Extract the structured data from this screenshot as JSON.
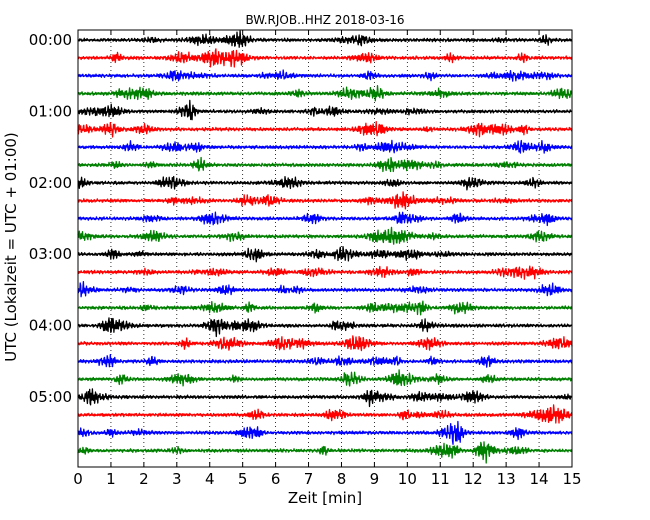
{
  "chart_data": {
    "type": "line",
    "title": "BW.RJOB..HHZ 2018-03-16",
    "xlabel": "Zeit  [min]",
    "ylabel": "UTC (Lokalzeit = UTC + 01:00)",
    "xlim": [
      0,
      15
    ],
    "x_ticks": [
      "0",
      "1",
      "2",
      "3",
      "4",
      "5",
      "6",
      "7",
      "8",
      "9",
      "10",
      "11",
      "12",
      "13",
      "14",
      "15"
    ],
    "y_ticks": [
      "00:00",
      "01:00",
      "02:00",
      "03:00",
      "04:00",
      "05:00"
    ],
    "grid": "vertical dotted",
    "trace_colors": [
      "#000000",
      "#ff0000",
      "#0000ff",
      "#008000"
    ],
    "series": [
      {
        "start": "00:00",
        "color": "#000000"
      },
      {
        "start": "00:15",
        "color": "#ff0000"
      },
      {
        "start": "00:30",
        "color": "#0000ff"
      },
      {
        "start": "00:45",
        "color": "#008000"
      },
      {
        "start": "01:00",
        "color": "#000000"
      },
      {
        "start": "01:15",
        "color": "#ff0000"
      },
      {
        "start": "01:30",
        "color": "#0000ff"
      },
      {
        "start": "01:45",
        "color": "#008000"
      },
      {
        "start": "02:00",
        "color": "#000000"
      },
      {
        "start": "02:15",
        "color": "#ff0000"
      },
      {
        "start": "02:30",
        "color": "#0000ff"
      },
      {
        "start": "02:45",
        "color": "#008000"
      },
      {
        "start": "03:00",
        "color": "#000000"
      },
      {
        "start": "03:15",
        "color": "#ff0000"
      },
      {
        "start": "03:30",
        "color": "#0000ff"
      },
      {
        "start": "03:45",
        "color": "#008000"
      },
      {
        "start": "04:00",
        "color": "#000000"
      },
      {
        "start": "04:15",
        "color": "#ff0000"
      },
      {
        "start": "04:30",
        "color": "#0000ff"
      },
      {
        "start": "04:45",
        "color": "#008000"
      },
      {
        "start": "05:00",
        "color": "#000000"
      },
      {
        "start": "05:15",
        "color": "#ff0000"
      },
      {
        "start": "05:30",
        "color": "#0000ff"
      },
      {
        "start": "05:45",
        "color": "#008000"
      }
    ]
  }
}
